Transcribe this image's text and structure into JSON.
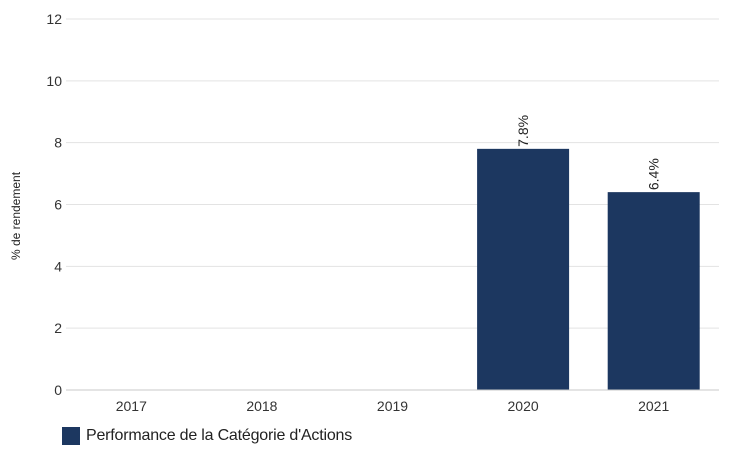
{
  "chart_data": {
    "type": "bar",
    "categories": [
      "2017",
      "2018",
      "2019",
      "2020",
      "2021"
    ],
    "series": [
      {
        "name": "Performance de la Catégorie d'Actions",
        "values": [
          null,
          null,
          null,
          7.8,
          6.4
        ],
        "data_labels": [
          "",
          "",
          "",
          "7.8%",
          "6.4%"
        ],
        "color": "#1c3760"
      }
    ],
    "ylabel": "% de rendement",
    "ylim": [
      0,
      12
    ],
    "yticks": [
      "0",
      "2",
      "4",
      "6",
      "8",
      "10",
      "12"
    ],
    "grid": true,
    "legend_position": "bottom-left"
  },
  "legend": {
    "label": "Performance de la Catégorie d'Actions",
    "color": "#1c3760"
  }
}
